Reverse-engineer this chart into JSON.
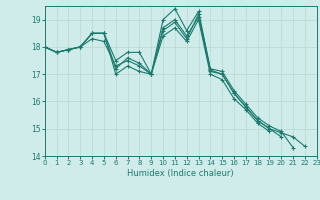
{
  "xlabel": "Humidex (Indice chaleur)",
  "ylabel": "",
  "background_color": "#d0ecea",
  "grid_color": "#b8d8d4",
  "line_color": "#1a7a6e",
  "xlim": [
    0,
    23
  ],
  "ylim": [
    14,
    19.5
  ],
  "yticks": [
    14,
    15,
    16,
    17,
    18,
    19
  ],
  "xticks": [
    0,
    1,
    2,
    3,
    4,
    5,
    6,
    7,
    8,
    9,
    10,
    11,
    12,
    13,
    14,
    15,
    16,
    17,
    18,
    19,
    20,
    21,
    22,
    23
  ],
  "series": [
    [
      18.0,
      17.8,
      17.9,
      18.0,
      18.5,
      18.5,
      17.5,
      17.8,
      17.8,
      17.0,
      19.0,
      19.4,
      18.6,
      19.3,
      17.2,
      17.1,
      16.4,
      15.9,
      15.4,
      15.1,
      14.9,
      14.3,
      null,
      null
    ],
    [
      18.0,
      17.8,
      17.9,
      18.0,
      18.5,
      18.5,
      17.2,
      17.6,
      17.4,
      17.0,
      18.7,
      19.0,
      18.4,
      19.1,
      17.1,
      17.0,
      16.3,
      15.8,
      15.3,
      15.0,
      14.7,
      null,
      null,
      null
    ],
    [
      18.0,
      17.8,
      17.9,
      18.0,
      18.5,
      18.5,
      17.0,
      17.3,
      17.1,
      17.0,
      18.4,
      18.7,
      18.2,
      19.0,
      17.0,
      16.8,
      16.1,
      15.7,
      15.2,
      14.9,
      null,
      null,
      null,
      null
    ],
    [
      18.0,
      17.8,
      17.9,
      18.0,
      18.3,
      18.2,
      17.3,
      17.5,
      17.3,
      17.0,
      18.6,
      18.9,
      18.3,
      19.2,
      17.15,
      17.0,
      16.3,
      15.8,
      15.3,
      15.0,
      14.85,
      14.7,
      14.35,
      null
    ]
  ]
}
